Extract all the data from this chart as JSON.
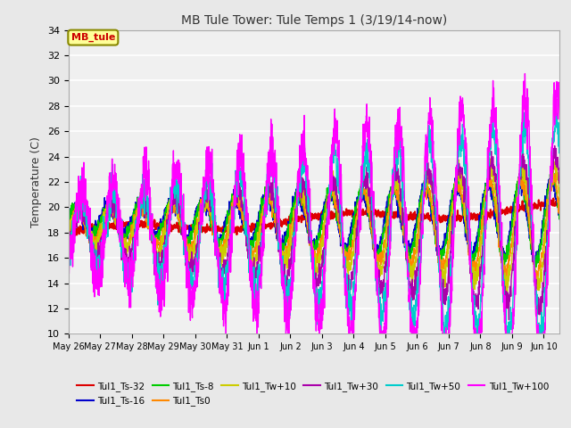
{
  "title": "MB Tule Tower: Tule Temps 1 (3/19/14-now)",
  "ylabel": "Temperature (C)",
  "ylim": [
    10,
    34
  ],
  "yticks": [
    10,
    12,
    14,
    16,
    18,
    20,
    22,
    24,
    26,
    28,
    30,
    32,
    34
  ],
  "bg_color": "#e8e8e8",
  "plot_bg": "#f0f0f0",
  "series": [
    {
      "label": "Tul1_Ts-32",
      "color": "#dd0000",
      "lw": 1.5
    },
    {
      "label": "Tul1_Ts-16",
      "color": "#0000cc",
      "lw": 1.0
    },
    {
      "label": "Tul1_Ts-8",
      "color": "#00cc00",
      "lw": 1.0
    },
    {
      "label": "Tul1_Ts0",
      "color": "#ff8800",
      "lw": 1.0
    },
    {
      "label": "Tul1_Tw+10",
      "color": "#cccc00",
      "lw": 1.0
    },
    {
      "label": "Tul1_Tw+30",
      "color": "#aa00aa",
      "lw": 1.0
    },
    {
      "label": "Tul1_Tw+50",
      "color": "#00cccc",
      "lw": 1.0
    },
    {
      "label": "Tul1_Tw+100",
      "color": "#ff00ff",
      "lw": 1.0
    }
  ],
  "annotation_label": "MB_tule",
  "annotation_color": "#cc0000",
  "annotation_bg": "#ffff99",
  "annotation_border": "#888800",
  "n_days": 15.5,
  "tick_labels": [
    "May 26",
    "May 27",
    "May 28",
    "May 29",
    "May 30",
    "May 31",
    "Jun 1",
    "Jun 2",
    "Jun 3",
    "Jun 4",
    "Jun 5",
    "Jun 6",
    "Jun 7",
    "Jun 8",
    "Jun 9",
    "Jun 10"
  ],
  "tick_positions": [
    0,
    1,
    2,
    3,
    4,
    5,
    6,
    7,
    8,
    9,
    10,
    11,
    12,
    13,
    14,
    15
  ]
}
